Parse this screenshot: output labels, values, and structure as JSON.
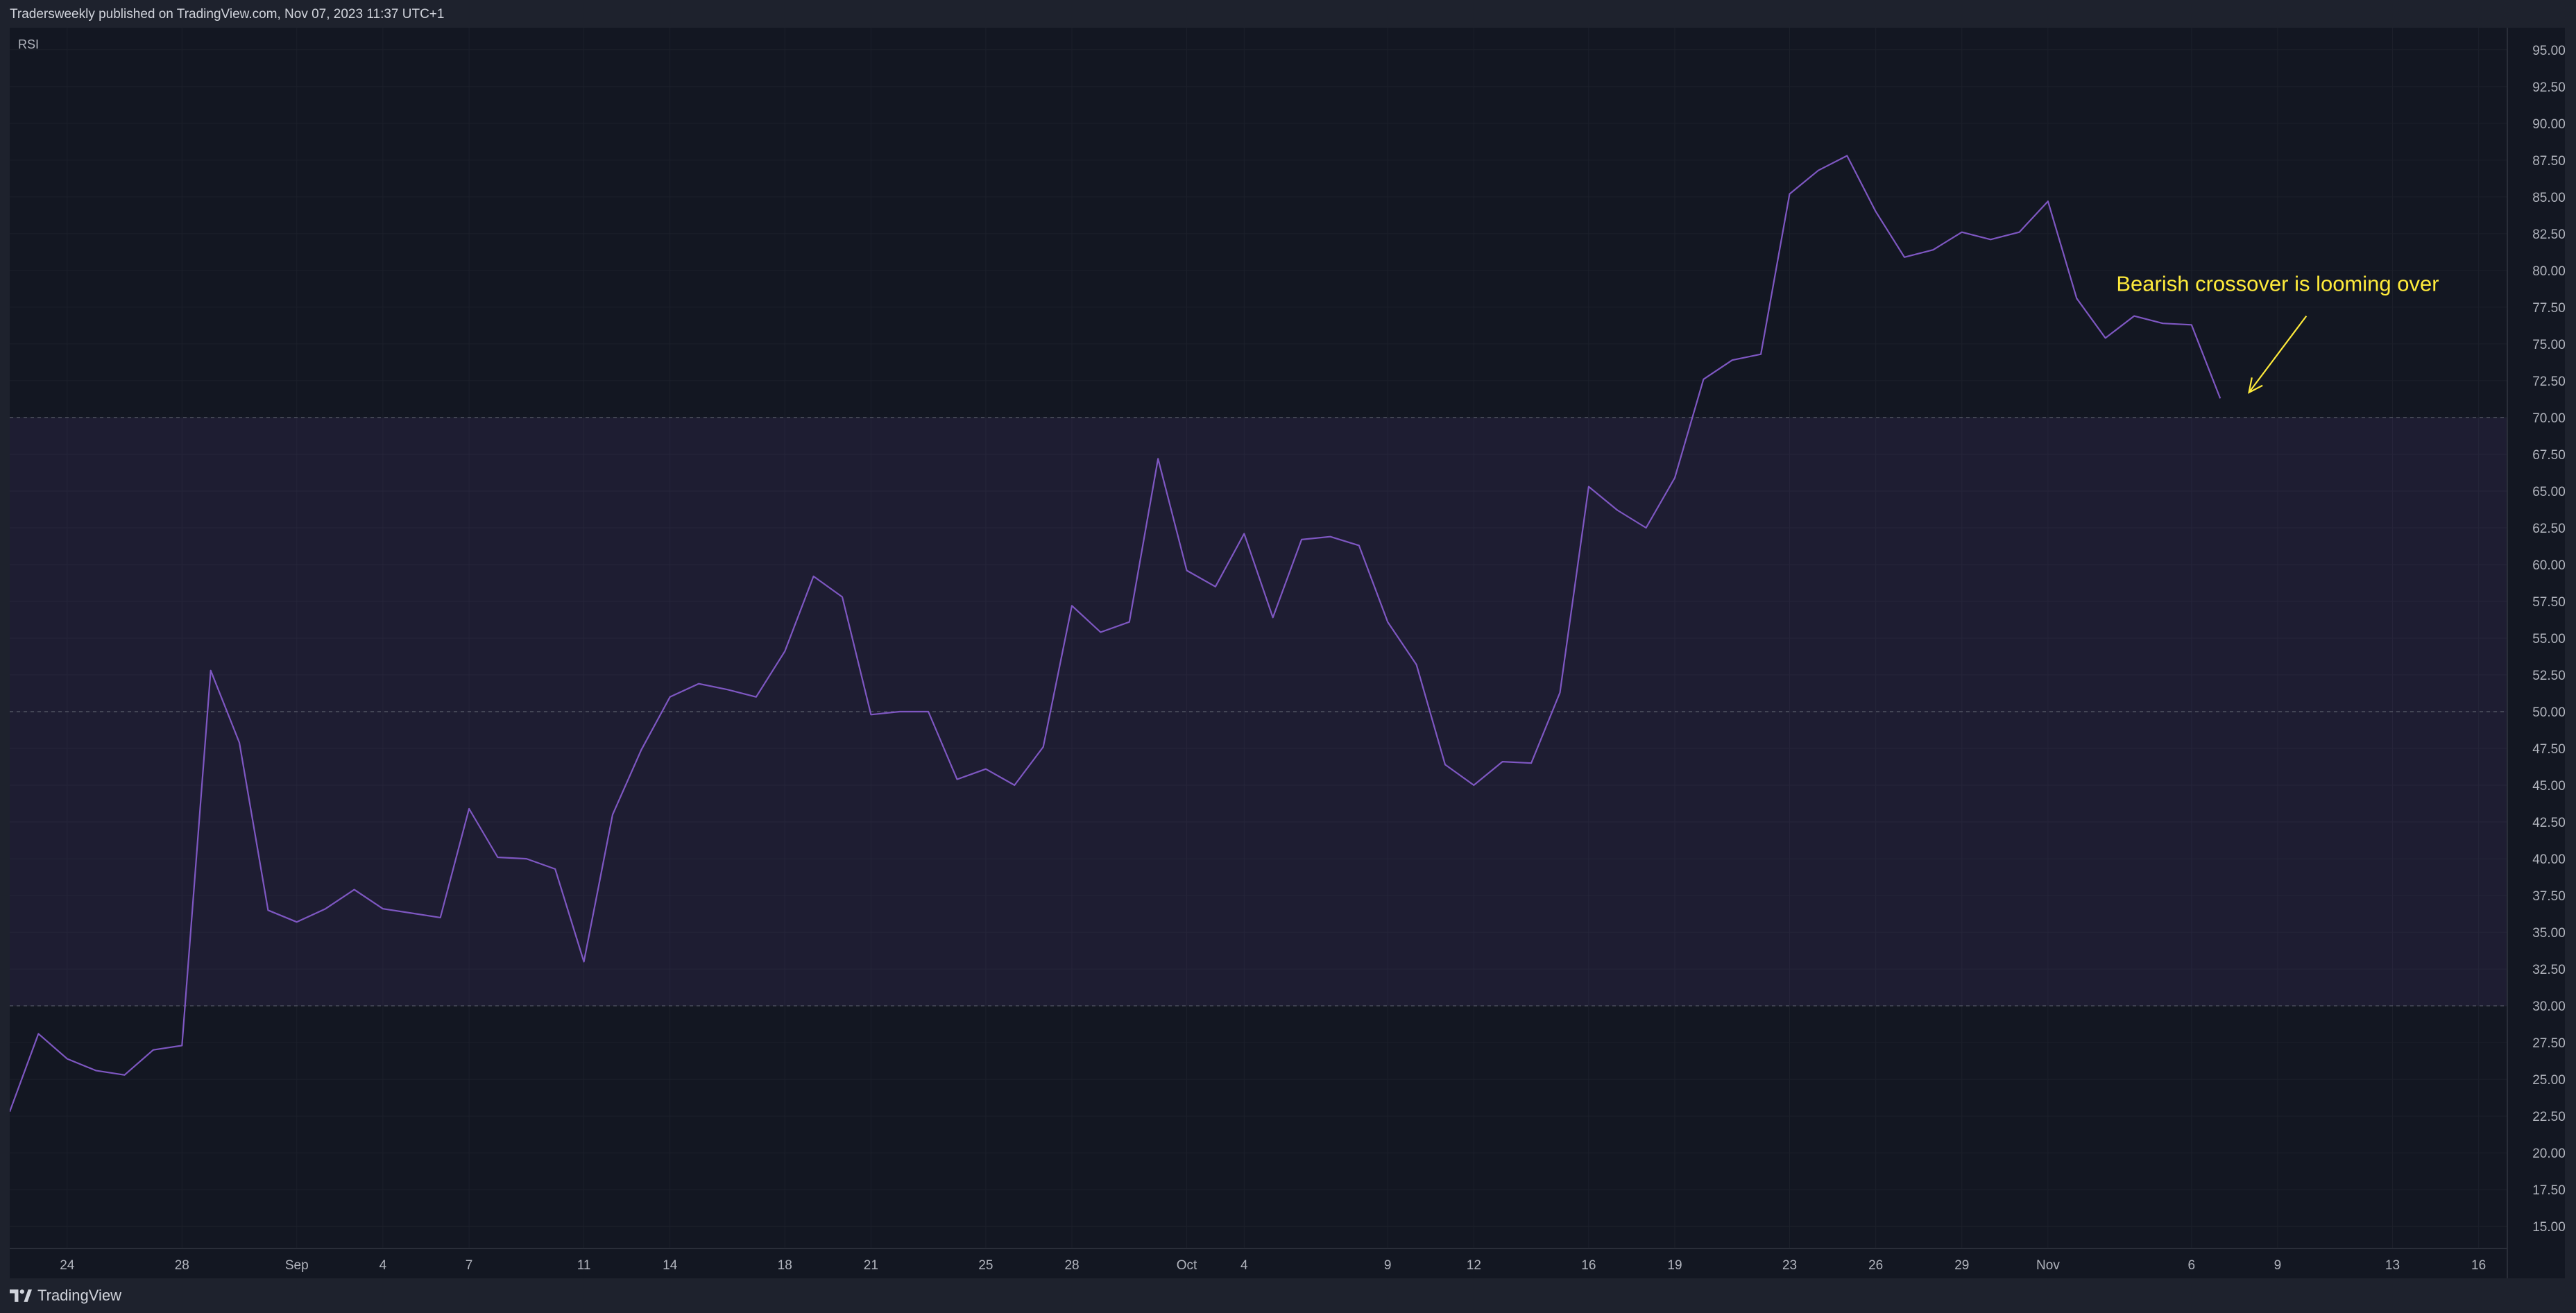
{
  "header": {
    "text": "Tradersweekly published on TradingView.com, Nov 07, 2023 11:37 UTC+1"
  },
  "footer": {
    "brand": "TradingView"
  },
  "colors": {
    "background": "#131722",
    "line": "#7e57c2",
    "band_fill": "#7e57c2",
    "annotation": "#ffeb3b",
    "text": "#b2b5be"
  },
  "chart_data": {
    "type": "line",
    "indicator_label": "RSI",
    "ylim": [
      13.5,
      96.5
    ],
    "y_ticks": [
      "95.00",
      "92.50",
      "90.00",
      "87.50",
      "85.00",
      "82.50",
      "80.00",
      "77.50",
      "75.00",
      "72.50",
      "70.00",
      "67.50",
      "65.00",
      "62.50",
      "60.00",
      "57.50",
      "55.00",
      "52.50",
      "50.00",
      "47.50",
      "45.00",
      "42.50",
      "40.00",
      "37.50",
      "35.00",
      "32.50",
      "30.00",
      "27.50",
      "25.00",
      "22.50",
      "20.00",
      "17.50",
      "15.00"
    ],
    "reference_lines": [
      70,
      50,
      30
    ],
    "band": [
      30,
      70
    ],
    "x_tick_labels": [
      {
        "label": "24",
        "date": "2023-08-24"
      },
      {
        "label": "28",
        "date": "2023-08-28"
      },
      {
        "label": "Sep",
        "date": "2023-09-01"
      },
      {
        "label": "4",
        "date": "2023-09-04"
      },
      {
        "label": "7",
        "date": "2023-09-07"
      },
      {
        "label": "11",
        "date": "2023-09-11"
      },
      {
        "label": "14",
        "date": "2023-09-14"
      },
      {
        "label": "18",
        "date": "2023-09-18"
      },
      {
        "label": "21",
        "date": "2023-09-21"
      },
      {
        "label": "25",
        "date": "2023-09-25"
      },
      {
        "label": "28",
        "date": "2023-09-28"
      },
      {
        "label": "Oct",
        "date": "2023-10-02"
      },
      {
        "label": "4",
        "date": "2023-10-04"
      },
      {
        "label": "9",
        "date": "2023-10-09"
      },
      {
        "label": "12",
        "date": "2023-10-12"
      },
      {
        "label": "16",
        "date": "2023-10-16"
      },
      {
        "label": "19",
        "date": "2023-10-19"
      },
      {
        "label": "23",
        "date": "2023-10-23"
      },
      {
        "label": "26",
        "date": "2023-10-26"
      },
      {
        "label": "29",
        "date": "2023-10-29"
      },
      {
        "label": "Nov",
        "date": "2023-11-01"
      },
      {
        "label": "6",
        "date": "2023-11-06"
      },
      {
        "label": "9",
        "date": "2023-11-09"
      },
      {
        "label": "13",
        "date": "2023-11-13"
      },
      {
        "label": "16",
        "date": "2023-11-16"
      }
    ],
    "x_range": [
      "2023-08-22",
      "2023-11-17"
    ],
    "series": [
      {
        "points": [
          [
            "2023-08-22",
            22.8
          ],
          [
            "2023-08-23",
            28.1
          ],
          [
            "2023-08-24",
            26.4
          ],
          [
            "2023-08-25",
            25.6
          ],
          [
            "2023-08-26",
            25.3
          ],
          [
            "2023-08-27",
            27.0
          ],
          [
            "2023-08-28",
            27.3
          ],
          [
            "2023-08-29",
            52.8
          ],
          [
            "2023-08-30",
            47.9
          ],
          [
            "2023-08-31",
            36.5
          ],
          [
            "2023-09-01",
            35.7
          ],
          [
            "2023-09-02",
            36.6
          ],
          [
            "2023-09-03",
            37.9
          ],
          [
            "2023-09-04",
            36.6
          ],
          [
            "2023-09-05",
            36.3
          ],
          [
            "2023-09-06",
            36.0
          ],
          [
            "2023-09-07",
            43.4
          ],
          [
            "2023-09-08",
            40.1
          ],
          [
            "2023-09-09",
            40.0
          ],
          [
            "2023-09-10",
            39.3
          ],
          [
            "2023-09-11",
            33.0
          ],
          [
            "2023-09-12",
            43.0
          ],
          [
            "2023-09-13",
            47.4
          ],
          [
            "2023-09-14",
            51.0
          ],
          [
            "2023-09-15",
            51.9
          ],
          [
            "2023-09-16",
            51.5
          ],
          [
            "2023-09-17",
            51.0
          ],
          [
            "2023-09-18",
            54.1
          ],
          [
            "2023-09-19",
            59.2
          ],
          [
            "2023-09-20",
            57.8
          ],
          [
            "2023-09-21",
            49.8
          ],
          [
            "2023-09-22",
            50.0
          ],
          [
            "2023-09-23",
            50.0
          ],
          [
            "2023-09-24",
            45.4
          ],
          [
            "2023-09-25",
            46.1
          ],
          [
            "2023-09-26",
            45.0
          ],
          [
            "2023-09-27",
            47.6
          ],
          [
            "2023-09-28",
            57.2
          ],
          [
            "2023-09-29",
            55.4
          ],
          [
            "2023-09-30",
            56.1
          ],
          [
            "2023-10-01",
            67.2
          ],
          [
            "2023-10-02",
            59.6
          ],
          [
            "2023-10-03",
            58.5
          ],
          [
            "2023-10-04",
            62.1
          ],
          [
            "2023-10-05",
            56.4
          ],
          [
            "2023-10-06",
            61.7
          ],
          [
            "2023-10-07",
            61.9
          ],
          [
            "2023-10-08",
            61.3
          ],
          [
            "2023-10-09",
            56.1
          ],
          [
            "2023-10-10",
            53.2
          ],
          [
            "2023-10-11",
            46.4
          ],
          [
            "2023-10-12",
            45.0
          ],
          [
            "2023-10-13",
            46.6
          ],
          [
            "2023-10-14",
            46.5
          ],
          [
            "2023-10-15",
            51.3
          ],
          [
            "2023-10-16",
            65.3
          ],
          [
            "2023-10-17",
            63.7
          ],
          [
            "2023-10-18",
            62.5
          ],
          [
            "2023-10-19",
            65.9
          ],
          [
            "2023-10-20",
            72.6
          ],
          [
            "2023-10-21",
            73.9
          ],
          [
            "2023-10-22",
            74.3
          ],
          [
            "2023-10-23",
            85.2
          ],
          [
            "2023-10-24",
            86.8
          ],
          [
            "2023-10-25",
            87.8
          ],
          [
            "2023-10-26",
            84.0
          ],
          [
            "2023-10-27",
            80.9
          ],
          [
            "2023-10-28",
            81.4
          ],
          [
            "2023-10-29",
            82.6
          ],
          [
            "2023-10-30",
            82.1
          ],
          [
            "2023-10-31",
            82.6
          ],
          [
            "2023-11-01",
            84.7
          ],
          [
            "2023-11-02",
            78.1
          ],
          [
            "2023-11-03",
            75.4
          ],
          [
            "2023-11-04",
            76.9
          ],
          [
            "2023-11-05",
            76.4
          ],
          [
            "2023-11-06",
            76.3
          ],
          [
            "2023-11-07",
            71.3
          ]
        ]
      }
    ],
    "annotations": [
      {
        "text": "Bearish crossover is looming over",
        "text_anchor": {
          "date": "2023-11-09",
          "value": 78.6
        },
        "arrow_from": {
          "date": "2023-11-10",
          "value": 76.9
        },
        "arrow_to": {
          "date": "2023-11-08",
          "value": 71.7
        }
      }
    ]
  }
}
